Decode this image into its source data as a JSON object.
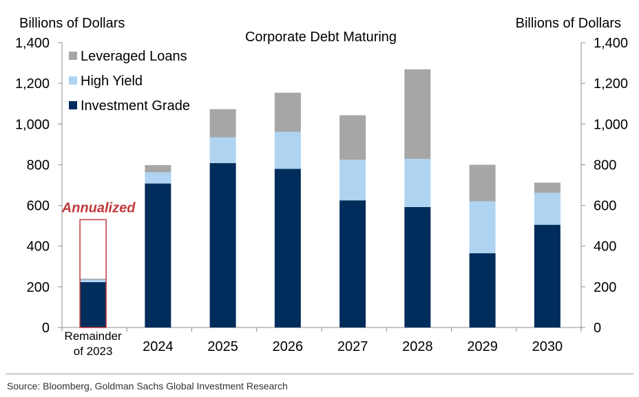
{
  "chart_data": {
    "type": "bar",
    "stacked": true,
    "title": "Corporate Debt Maturing",
    "ylabel_left": "Billions of Dollars",
    "ylabel_right": "Billions of Dollars",
    "ylim": [
      0,
      1400
    ],
    "yticks": [
      0,
      200,
      400,
      600,
      800,
      1000,
      1200,
      1400
    ],
    "ytick_labels": [
      "0",
      "200",
      "400",
      "600",
      "800",
      "1,000",
      "1,200",
      "1,400"
    ],
    "categories": [
      "Remainder of 2023",
      "2024",
      "2025",
      "2026",
      "2027",
      "2028",
      "2029",
      "2030"
    ],
    "category_label_lines": [
      [
        "Remainder",
        "of 2023"
      ],
      [
        "2024"
      ],
      [
        "2025"
      ],
      [
        "2026"
      ],
      [
        "2027"
      ],
      [
        "2028"
      ],
      [
        "2029"
      ],
      [
        "2030"
      ]
    ],
    "series": [
      {
        "name": "Investment Grade",
        "color": "#002d5b",
        "values": [
          223,
          708,
          808,
          780,
          625,
          592,
          365,
          505
        ]
      },
      {
        "name": "High Yield",
        "color": "#afd4f2",
        "values": [
          12,
          55,
          127,
          182,
          200,
          237,
          255,
          157
        ]
      },
      {
        "name": "Leveraged Loans",
        "color": "#a6a6a6",
        "values": [
          5,
          35,
          138,
          192,
          218,
          440,
          180,
          50
        ]
      }
    ],
    "legend_order": [
      "Leveraged Loans",
      "High Yield",
      "Investment Grade"
    ],
    "legend_position": "top-left",
    "annotation": {
      "text": "Annualized",
      "category": "Remainder of 2023",
      "value": 530,
      "color": "#c0393b"
    }
  },
  "source": "Source: Bloomberg, Goldman Sachs Global Investment Research"
}
